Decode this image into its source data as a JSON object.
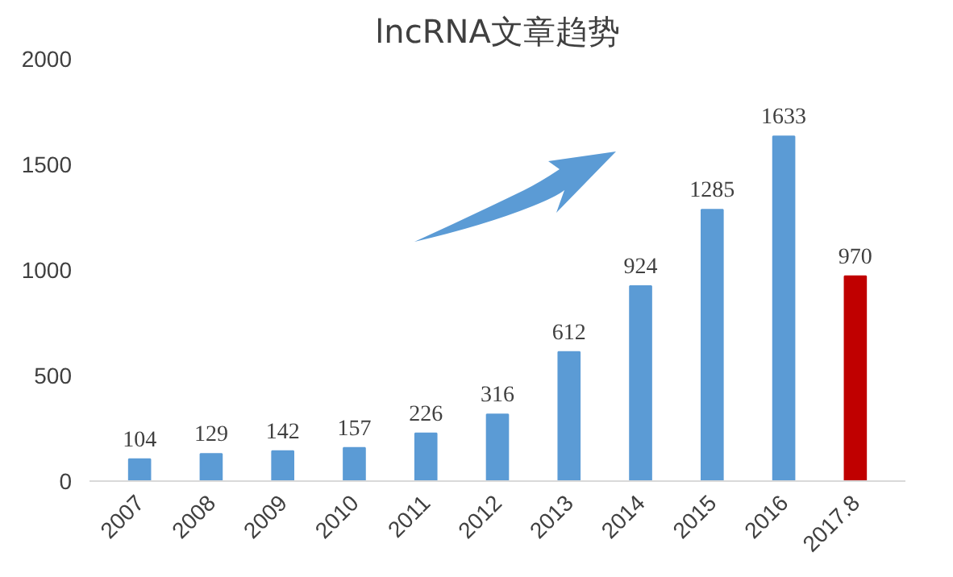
{
  "chart_data": {
    "type": "bar",
    "title": "lncRNA文章趋势",
    "categories": [
      "2007",
      "2008",
      "2009",
      "2010",
      "2011",
      "2012",
      "2013",
      "2014",
      "2015",
      "2016",
      "2017.8"
    ],
    "values": [
      104,
      129,
      142,
      157,
      226,
      316,
      612,
      924,
      1285,
      1633,
      970
    ],
    "colors": [
      "#5b9bd5",
      "#5b9bd5",
      "#5b9bd5",
      "#5b9bd5",
      "#5b9bd5",
      "#5b9bd5",
      "#5b9bd5",
      "#5b9bd5",
      "#5b9bd5",
      "#5b9bd5",
      "#c00000"
    ],
    "ylim": [
      0,
      2000
    ],
    "yticks": [
      0,
      500,
      1000,
      1500,
      2000
    ],
    "grid": false,
    "data_labels": true
  }
}
